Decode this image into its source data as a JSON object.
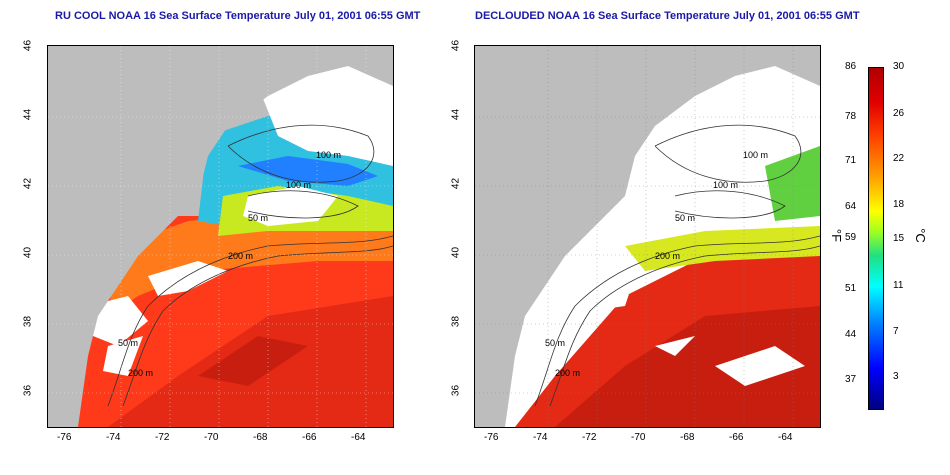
{
  "titles": {
    "left": "RU COOL NOAA 16 Sea Surface Temperature July 01, 2001 06:55 GMT",
    "right": "DECLOUDED NOAA 16 Sea Surface Temperature July 01, 2001 06:55 GMT"
  },
  "axes": {
    "lon_ticks": [
      "-76",
      "-74",
      "-72",
      "-70",
      "-68",
      "-66",
      "-64"
    ],
    "lat_ticks": [
      "46",
      "44",
      "42",
      "40",
      "38",
      "36"
    ]
  },
  "contour_labels": {
    "left": [
      "100 m",
      "100 m",
      "50 m",
      "50 m",
      "200 m",
      "200 m"
    ],
    "right": [
      "100 m",
      "100 m",
      "50 m",
      "50 m",
      "200 m",
      "200 m"
    ]
  },
  "colorbar": {
    "fahrenheit_ticks": [
      "86",
      "78",
      "71",
      "64",
      "59",
      "51",
      "44",
      "37"
    ],
    "celsius_ticks": [
      "30",
      "26",
      "22",
      "18",
      "15",
      "11",
      "7",
      "3"
    ],
    "fahrenheit_unit": "°F",
    "celsius_unit": "°C"
  },
  "colors": {
    "land": "#bdbdbd",
    "cloud": "#ffffff",
    "warm_water": "#ff3a1a",
    "title": "#1a1aa6"
  }
}
